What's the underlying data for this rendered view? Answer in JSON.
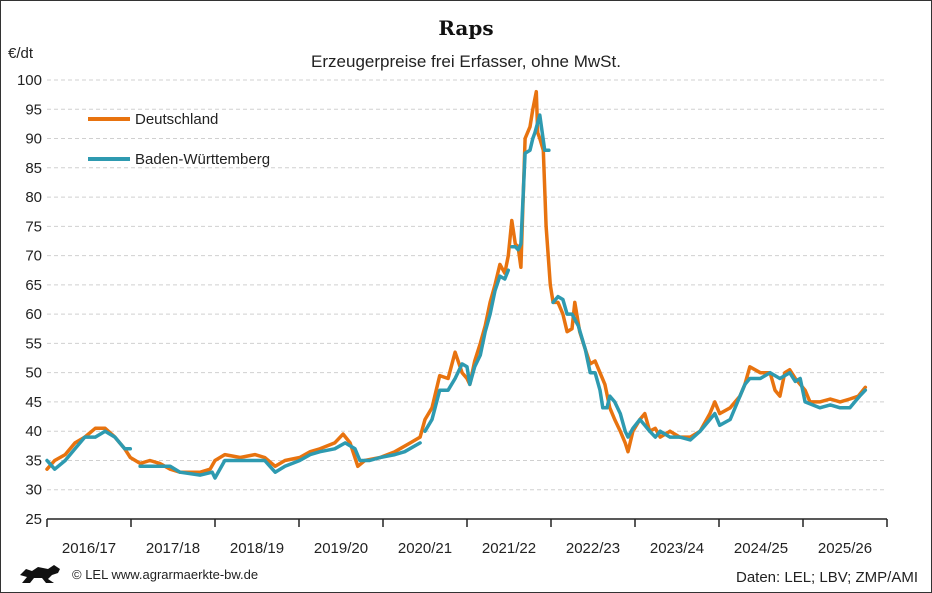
{
  "chart_data": {
    "type": "line",
    "title": "Raps",
    "subtitle": "Erzeugerpreise frei Erfasser, ohne MwSt.",
    "ylabel": "€/dt",
    "xlabel": "",
    "x_unit": "months since start of 2016/17 marketing year",
    "xlim": [
      0,
      120
    ],
    "ylim": [
      25,
      100
    ],
    "yticks": [
      25,
      30,
      35,
      40,
      45,
      50,
      55,
      60,
      65,
      70,
      75,
      80,
      85,
      90,
      95,
      100
    ],
    "grid": true,
    "legend_position": "top-left",
    "categories": [
      "2016/17",
      "2017/18",
      "2018/19",
      "2019/20",
      "2020/21",
      "2021/22",
      "2022/23",
      "2023/24",
      "2024/25",
      "2025/26"
    ],
    "series": [
      {
        "name": "Deutschland",
        "color": "#E8730F",
        "points": [
          [
            0,
            33.5
          ],
          [
            1.1,
            35
          ],
          [
            2.6,
            36
          ],
          [
            4,
            38
          ],
          [
            5.4,
            39
          ],
          [
            6.9,
            40.5
          ],
          [
            8.3,
            40.5
          ],
          [
            9.7,
            39
          ],
          [
            11.1,
            37
          ],
          [
            11.9,
            35.5
          ],
          [
            13.3,
            34.5
          ],
          [
            14.7,
            35
          ],
          [
            16.1,
            34.5
          ],
          [
            17.6,
            33.5
          ],
          [
            19,
            33
          ],
          [
            20.4,
            33
          ],
          [
            21.9,
            33
          ],
          [
            23.3,
            33.5
          ],
          [
            24,
            35
          ],
          [
            25.4,
            36
          ],
          [
            27.6,
            35.5
          ],
          [
            29.7,
            36
          ],
          [
            31.1,
            35.5
          ],
          [
            32.6,
            34
          ],
          [
            34,
            35
          ],
          [
            36.1,
            35.5
          ],
          [
            37.6,
            36.5
          ],
          [
            39,
            37
          ],
          [
            41.1,
            38
          ],
          [
            42.3,
            39.5
          ],
          [
            43.3,
            38
          ],
          [
            44.4,
            34
          ],
          [
            45.4,
            35
          ],
          [
            47.6,
            35.5
          ],
          [
            49.7,
            36.5
          ],
          [
            51.9,
            38
          ],
          [
            53.3,
            39
          ],
          [
            54,
            42
          ],
          [
            55,
            44
          ],
          [
            56.1,
            49.5
          ],
          [
            57.3,
            49
          ],
          [
            58.3,
            53.5
          ],
          [
            59.3,
            50
          ],
          [
            60,
            49
          ],
          [
            60.4,
            48
          ],
          [
            61.1,
            52
          ],
          [
            61.9,
            55
          ],
          [
            62.6,
            58
          ],
          [
            63.3,
            62
          ],
          [
            64,
            65
          ],
          [
            64.7,
            68.5
          ],
          [
            65.4,
            67
          ],
          [
            65.9,
            70
          ],
          [
            66.4,
            76
          ],
          [
            66.9,
            72
          ],
          [
            67.3,
            71.5
          ],
          [
            67.7,
            68
          ],
          [
            68.3,
            90
          ],
          [
            69,
            92
          ],
          [
            69.4,
            95
          ],
          [
            69.9,
            98
          ],
          [
            70.1,
            91
          ],
          [
            70.4,
            90
          ],
          [
            70.9,
            88
          ],
          [
            71.3,
            75
          ],
          [
            71.9,
            65
          ],
          [
            72.3,
            62
          ],
          [
            73,
            62
          ],
          [
            73.7,
            60
          ],
          [
            74.3,
            57
          ],
          [
            75,
            57.5
          ],
          [
            75.4,
            62
          ],
          [
            76.1,
            57
          ],
          [
            76.9,
            54
          ],
          [
            77.6,
            51.5
          ],
          [
            78.3,
            52
          ],
          [
            79,
            50
          ],
          [
            79.7,
            48
          ],
          [
            80.4,
            44
          ],
          [
            81.1,
            42
          ],
          [
            81.9,
            40
          ],
          [
            82.6,
            38
          ],
          [
            83,
            36.5
          ],
          [
            83.7,
            40
          ],
          [
            84.7,
            42
          ],
          [
            85.4,
            43
          ],
          [
            86.1,
            40
          ],
          [
            86.9,
            40.5
          ],
          [
            87.6,
            39
          ],
          [
            89,
            40
          ],
          [
            90.4,
            39
          ],
          [
            91.9,
            39
          ],
          [
            93.3,
            40
          ],
          [
            94.7,
            43
          ],
          [
            95.4,
            45
          ],
          [
            96.1,
            43
          ],
          [
            97.6,
            44
          ],
          [
            99,
            46
          ],
          [
            99.7,
            48
          ],
          [
            100.4,
            51
          ],
          [
            101.9,
            50
          ],
          [
            103.3,
            50
          ],
          [
            104,
            47
          ],
          [
            104.7,
            46
          ],
          [
            105.4,
            50
          ],
          [
            106.1,
            50.5
          ],
          [
            106.9,
            49
          ],
          [
            107.6,
            48
          ],
          [
            108.3,
            47
          ],
          [
            109,
            45
          ],
          [
            110.4,
            45
          ],
          [
            111.9,
            45.5
          ],
          [
            113.3,
            45
          ],
          [
            114.7,
            45.5
          ],
          [
            115.9,
            46
          ],
          [
            116.9,
            47.5
          ]
        ]
      },
      {
        "name": "Baden-Württemberg",
        "color": "#2E9AB0",
        "points": [
          [
            0,
            35
          ],
          [
            1.1,
            33.5
          ],
          [
            2.6,
            35
          ],
          [
            4,
            37
          ],
          [
            5.4,
            39
          ],
          [
            6.9,
            39
          ],
          [
            8.3,
            40
          ],
          [
            9.7,
            39
          ],
          [
            11.1,
            37
          ],
          [
            11.9,
            37
          ],
          null,
          [
            13.3,
            34
          ],
          [
            16.1,
            34
          ],
          [
            17.6,
            34
          ],
          [
            19,
            33
          ],
          [
            21.9,
            32.5
          ],
          [
            23.6,
            33
          ],
          [
            24,
            32
          ],
          [
            25.4,
            35
          ],
          [
            27.6,
            35
          ],
          [
            29.7,
            35
          ],
          [
            31.1,
            35
          ],
          [
            32.6,
            33
          ],
          [
            34,
            34
          ],
          [
            36.1,
            35
          ],
          [
            37.6,
            36
          ],
          [
            39,
            36.5
          ],
          [
            41.1,
            37
          ],
          [
            42.6,
            38
          ],
          [
            44,
            37
          ],
          [
            44.7,
            35
          ],
          [
            46.1,
            35
          ],
          [
            47.6,
            35.5
          ],
          [
            49.7,
            36
          ],
          [
            51.1,
            36.5
          ],
          [
            53.3,
            38
          ],
          null,
          [
            54,
            40
          ],
          [
            55,
            42
          ],
          [
            56.1,
            47
          ],
          [
            57.3,
            47
          ],
          [
            58.3,
            49
          ],
          [
            59.3,
            51.5
          ],
          [
            60,
            51
          ],
          [
            60.4,
            48
          ],
          [
            61.1,
            51
          ],
          [
            61.9,
            53
          ],
          [
            62.6,
            57
          ],
          [
            63.3,
            60
          ],
          [
            64,
            64
          ],
          [
            64.7,
            66.5
          ],
          [
            65.4,
            66
          ],
          [
            65.9,
            67.5
          ],
          null,
          [
            66.4,
            71.5
          ],
          [
            66.9,
            71.5
          ],
          [
            67.3,
            71
          ],
          [
            67.7,
            72
          ],
          [
            68.3,
            87.5
          ],
          [
            69,
            88
          ],
          [
            69.4,
            90
          ],
          [
            69.7,
            91
          ],
          [
            70.4,
            94
          ],
          [
            71.1,
            88
          ],
          [
            71.7,
            88
          ],
          null,
          [
            72.3,
            62
          ],
          [
            73,
            63
          ],
          [
            73.7,
            62.5
          ],
          [
            74.3,
            60
          ],
          [
            75,
            60
          ],
          [
            75.9,
            58
          ],
          [
            76.9,
            54
          ],
          [
            77.6,
            50
          ],
          [
            78.3,
            50
          ],
          [
            79,
            47
          ],
          [
            79.4,
            44
          ],
          [
            80,
            44
          ],
          [
            80.4,
            46
          ],
          [
            81.1,
            45
          ],
          [
            81.9,
            43
          ],
          [
            82.6,
            40
          ],
          [
            83,
            39
          ],
          [
            83.7,
            40.5
          ],
          [
            84.7,
            42
          ],
          [
            85.4,
            41
          ],
          [
            86.1,
            40
          ],
          [
            86.9,
            39
          ],
          [
            87.6,
            40
          ],
          [
            89,
            39
          ],
          [
            90.4,
            39
          ],
          [
            91.9,
            38.5
          ],
          [
            93.3,
            40
          ],
          [
            94.7,
            42
          ],
          [
            95.4,
            43
          ],
          [
            96.1,
            41
          ],
          [
            97.6,
            42
          ],
          [
            99,
            46
          ],
          [
            99.7,
            48
          ],
          [
            100.4,
            49
          ],
          [
            101.9,
            49
          ],
          [
            103.3,
            50
          ],
          [
            104.7,
            49
          ],
          [
            106.1,
            50
          ],
          [
            106.9,
            48.5
          ],
          [
            107.6,
            49
          ],
          [
            108.3,
            45
          ],
          [
            110.4,
            44
          ],
          [
            111.9,
            44.5
          ],
          [
            113.3,
            44
          ],
          [
            114.7,
            44
          ],
          [
            115.4,
            45
          ],
          [
            116.1,
            46
          ],
          [
            116.9,
            47
          ]
        ]
      }
    ]
  },
  "footer": {
    "copyright": "© LEL www.agrarmaerkte-bw.de",
    "source": "Daten: LEL; LBV; ZMP/AMI",
    "logo_icon": "baden-wuerttemberg-lion-logo"
  }
}
